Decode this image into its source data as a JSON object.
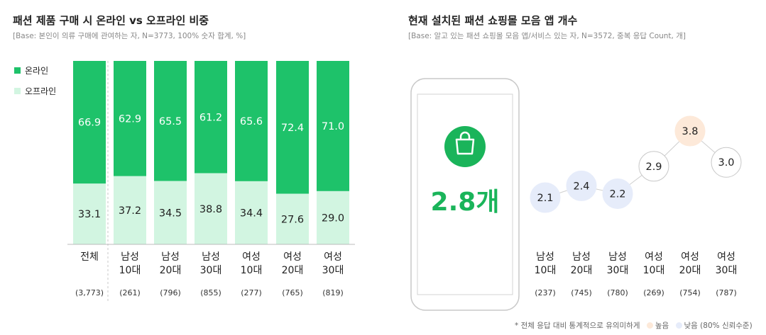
{
  "left": {
    "title": "패션 제품 구매 시 온라인 vs 오프라인 비중",
    "base": "[Base: 본인이 의류 구매에 관여하는 자, N=3773, 100% 숫자 합계, %]"
  },
  "right": {
    "title": "현재 설치된 패션 쇼핑몰 모음 앱 개수",
    "base": "[Base: 알고 있는 패션 쇼핑몰 모음 앱/서비스 있는 자, N=3572, 중복 응답 Count, 개]",
    "overall_value": "2.8개"
  },
  "footnote": {
    "prefix": "* 전체 응답 대비 통계적으로 유의미하게",
    "high": "높음",
    "low": "낮음 (80% 신뢰수준)"
  },
  "colors": {
    "online": "#1ec26a",
    "offline": "#d2f5e1",
    "high": "#fde9d9",
    "low": "#e6ecfa",
    "neutral_stroke": "#c8c8c8",
    "accent": "#1ab45a"
  },
  "chart_data": [
    {
      "type": "bar",
      "stacked": true,
      "legend_position": "top-left",
      "categories": [
        {
          "line1": "전체",
          "line2": "",
          "n": "(3,773)"
        },
        {
          "line1": "남성",
          "line2": "10대",
          "n": "(261)"
        },
        {
          "line1": "남성",
          "line2": "20대",
          "n": "(796)"
        },
        {
          "line1": "남성",
          "line2": "30대",
          "n": "(855)"
        },
        {
          "line1": "여성",
          "line2": "10대",
          "n": "(277)"
        },
        {
          "line1": "여성",
          "line2": "20대",
          "n": "(765)"
        },
        {
          "line1": "여성",
          "line2": "30대",
          "n": "(819)"
        }
      ],
      "series": [
        {
          "name": "온라인",
          "values": [
            66.9,
            62.9,
            65.5,
            61.2,
            65.6,
            72.4,
            71.0
          ],
          "labels": [
            "66.9",
            "62.9",
            "65.5",
            "61.2",
            "65.6",
            "72.4",
            "71.0"
          ]
        },
        {
          "name": "오프라인",
          "values": [
            33.1,
            37.2,
            34.5,
            38.8,
            34.4,
            27.6,
            29.0
          ],
          "labels": [
            "33.1",
            "37.2",
            "34.5",
            "38.8",
            "34.4",
            "27.6",
            "29.0"
          ]
        }
      ],
      "ylim": [
        0,
        100
      ]
    },
    {
      "type": "scatter",
      "categories": [
        {
          "line1": "남성",
          "line2": "10대",
          "n": "(237)"
        },
        {
          "line1": "남성",
          "line2": "20대",
          "n": "(745)"
        },
        {
          "line1": "남성",
          "line2": "30대",
          "n": "(780)"
        },
        {
          "line1": "여성",
          "line2": "10대",
          "n": "(269)"
        },
        {
          "line1": "여성",
          "line2": "20대",
          "n": "(754)"
        },
        {
          "line1": "여성",
          "line2": "30대",
          "n": "(787)"
        }
      ],
      "values": [
        2.1,
        2.4,
        2.2,
        2.9,
        3.8,
        3.0
      ],
      "labels": [
        "2.1",
        "2.4",
        "2.2",
        "2.9",
        "3.8",
        "3.0"
      ],
      "significance": [
        "low",
        "low",
        "low",
        "none",
        "high",
        "none"
      ]
    }
  ]
}
